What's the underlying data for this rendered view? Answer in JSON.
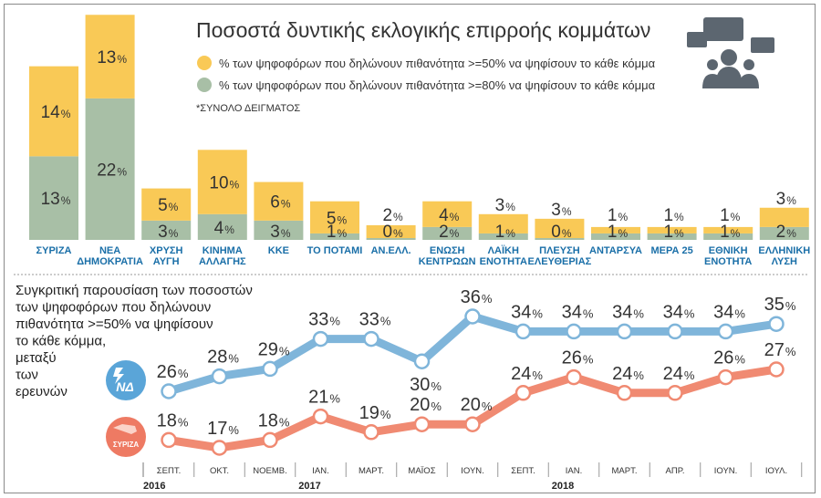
{
  "title": "Ποσοστά δυντικής εκλογικής επιρροής κομμάτων",
  "legend": [
    {
      "label": "% των ψηφοφόρων που δηλώνουν πιθανότητα >=50% να ψηφίσουν το κάθε κόμμα",
      "color": "#f9c956"
    },
    {
      "label": "% των ψηφοφόρων που δηλώνουν πιθανότητα >=80% να ψηφίσουν το κάθε κόμμα",
      "color": "#a8bfa6"
    }
  ],
  "note": "*ΣΥΝΟΛΟ ΔΕΙΓΜΑΤΟΣ",
  "icon": "audience-icon",
  "percent_sign": "%",
  "chart_data": [
    {
      "type": "bar",
      "categories": [
        [
          "ΣΥΡΙΖΑ"
        ],
        [
          "ΝΕΑ",
          "ΔΗΜΟΚΡΑΤΙΑ"
        ],
        [
          "ΧΡΥΣΗ",
          "ΑΥΓΗ"
        ],
        [
          "ΚΙΝΗΜΑ",
          "ΑΛΛΑΓΗΣ"
        ],
        [
          "ΚΚΕ"
        ],
        [
          "ΤΟ ΠΟΤΑΜΙ"
        ],
        [
          "ΑΝ.ΕΛΛ."
        ],
        [
          "ΕΝΩΣΗ",
          "ΚΕΝΤΡΩΩΝ"
        ],
        [
          "ΛΑΪΚΗ",
          "ΕΝΟΤΗΤΑ"
        ],
        [
          "ΠΛΕΥΣΗ",
          "ΕΛΕΥΘΕΡΙΑΣ"
        ],
        [
          "ΑΝΤΑΡΣΥΑ"
        ],
        [
          "ΜΕΡΑ 25"
        ],
        [
          "ΕΘΝΙΚΗ",
          "ΕΝΟΤΗΤΑ"
        ],
        [
          "ΕΛΛΗΝΙΚΗ",
          "ΛΥΣΗ"
        ]
      ],
      "series": [
        {
          "name": "% των ψηφοφόρων που δηλώνουν πιθανότητα >=80% να ψηφίσουν το κάθε κόμμα",
          "values": [
            13,
            22,
            3,
            4,
            3,
            1,
            0,
            2,
            1,
            0,
            1,
            1,
            1,
            2
          ],
          "color": "#a8bfa6"
        },
        {
          "name": "% των ψηφοφόρων που δηλώνουν πιθανότητα >=50% να ψηφίσουν το κάθε κόμμα",
          "values": [
            14,
            13,
            5,
            10,
            6,
            5,
            2,
            4,
            3,
            3,
            1,
            1,
            1,
            3
          ],
          "color": "#f9c956"
        }
      ],
      "stacked": true
    },
    {
      "type": "line",
      "title": [
        "Συγκριτική παρουσίαση  των ποσοστών",
        "των ψηφοφόρων που δηλώνουν",
        "πιθανότητα >=50% να ψηφίσουν",
        "το κάθε κόμμα,",
        "μεταξύ",
        "των",
        "ερευνών"
      ],
      "x": [
        "ΣΕΠΤ.",
        "ΟΚΤ.",
        "ΝΟΕΜΒ.",
        "ΙΑΝ.",
        "ΜΑΡΤ.",
        "ΜΑΪΟΣ",
        "ΙΟΥΝ.",
        "ΣΕΠΤ.",
        "ΙΑΝ.",
        "ΜΑΡΤ.",
        "ΑΠΡ.",
        "ΙΟΥΝ.",
        "ΙΟΥΛ."
      ],
      "years": [
        {
          "label": "2016",
          "at": 0
        },
        {
          "label": "2017",
          "at": 3
        },
        {
          "label": "2018",
          "at": 8
        }
      ],
      "series": [
        {
          "name": "ΝΔ",
          "values": [
            26,
            28,
            29,
            33,
            33,
            30,
            36,
            34,
            34,
            34,
            34,
            34,
            35
          ],
          "color": "#7fb5da"
        },
        {
          "name": "ΣΥΡΙΖΑ",
          "values": [
            18,
            17,
            18,
            21,
            19,
            20,
            20,
            24,
            26,
            24,
            24,
            26,
            27
          ],
          "color": "#f08a72"
        }
      ]
    }
  ]
}
